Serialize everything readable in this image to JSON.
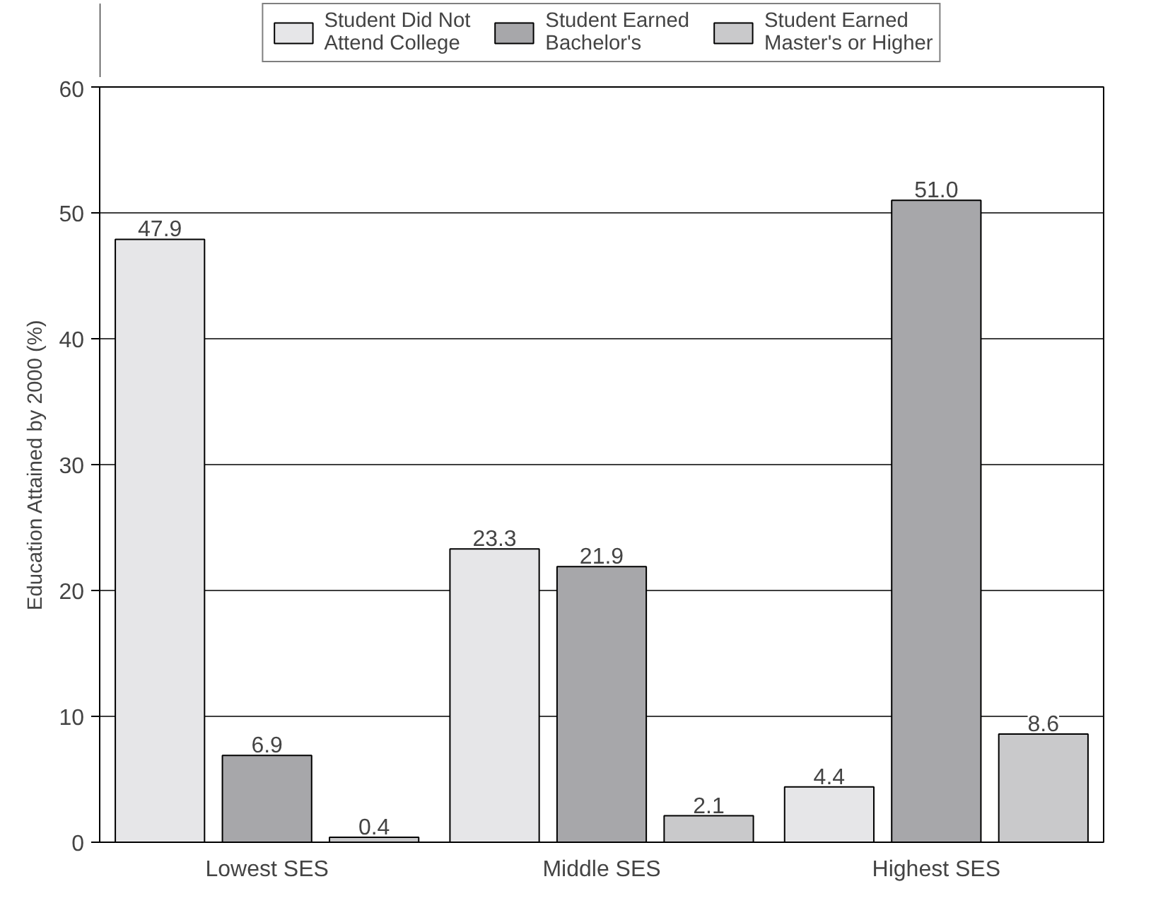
{
  "chart_data": {
    "type": "bar",
    "ylabel": "Education Attained by 2000 (%)",
    "categories": [
      "Lowest SES",
      "Middle SES",
      "Highest SES"
    ],
    "series": [
      {
        "name": "Student Did Not Attend College",
        "color": "#e6e6e8",
        "values": [
          47.9,
          23.3,
          4.4
        ],
        "value_labels": [
          "47.9",
          "23.3",
          "4.4"
        ]
      },
      {
        "name": "Student Earned Bachelor's",
        "color": "#a7a7aa",
        "values": [
          6.9,
          21.9,
          51.0
        ],
        "value_labels": [
          "6.9",
          "21.9",
          "51.0"
        ]
      },
      {
        "name": "Student Earned Master's or Higher",
        "color": "#c9c9cb",
        "values": [
          0.4,
          2.1,
          8.6
        ],
        "value_labels": [
          "0.4",
          "2.1",
          "8.6"
        ]
      }
    ],
    "ylim": [
      0,
      60
    ],
    "yticks": [
      0,
      10,
      20,
      30,
      40,
      50,
      60
    ],
    "grid": "y",
    "legend": "top"
  }
}
